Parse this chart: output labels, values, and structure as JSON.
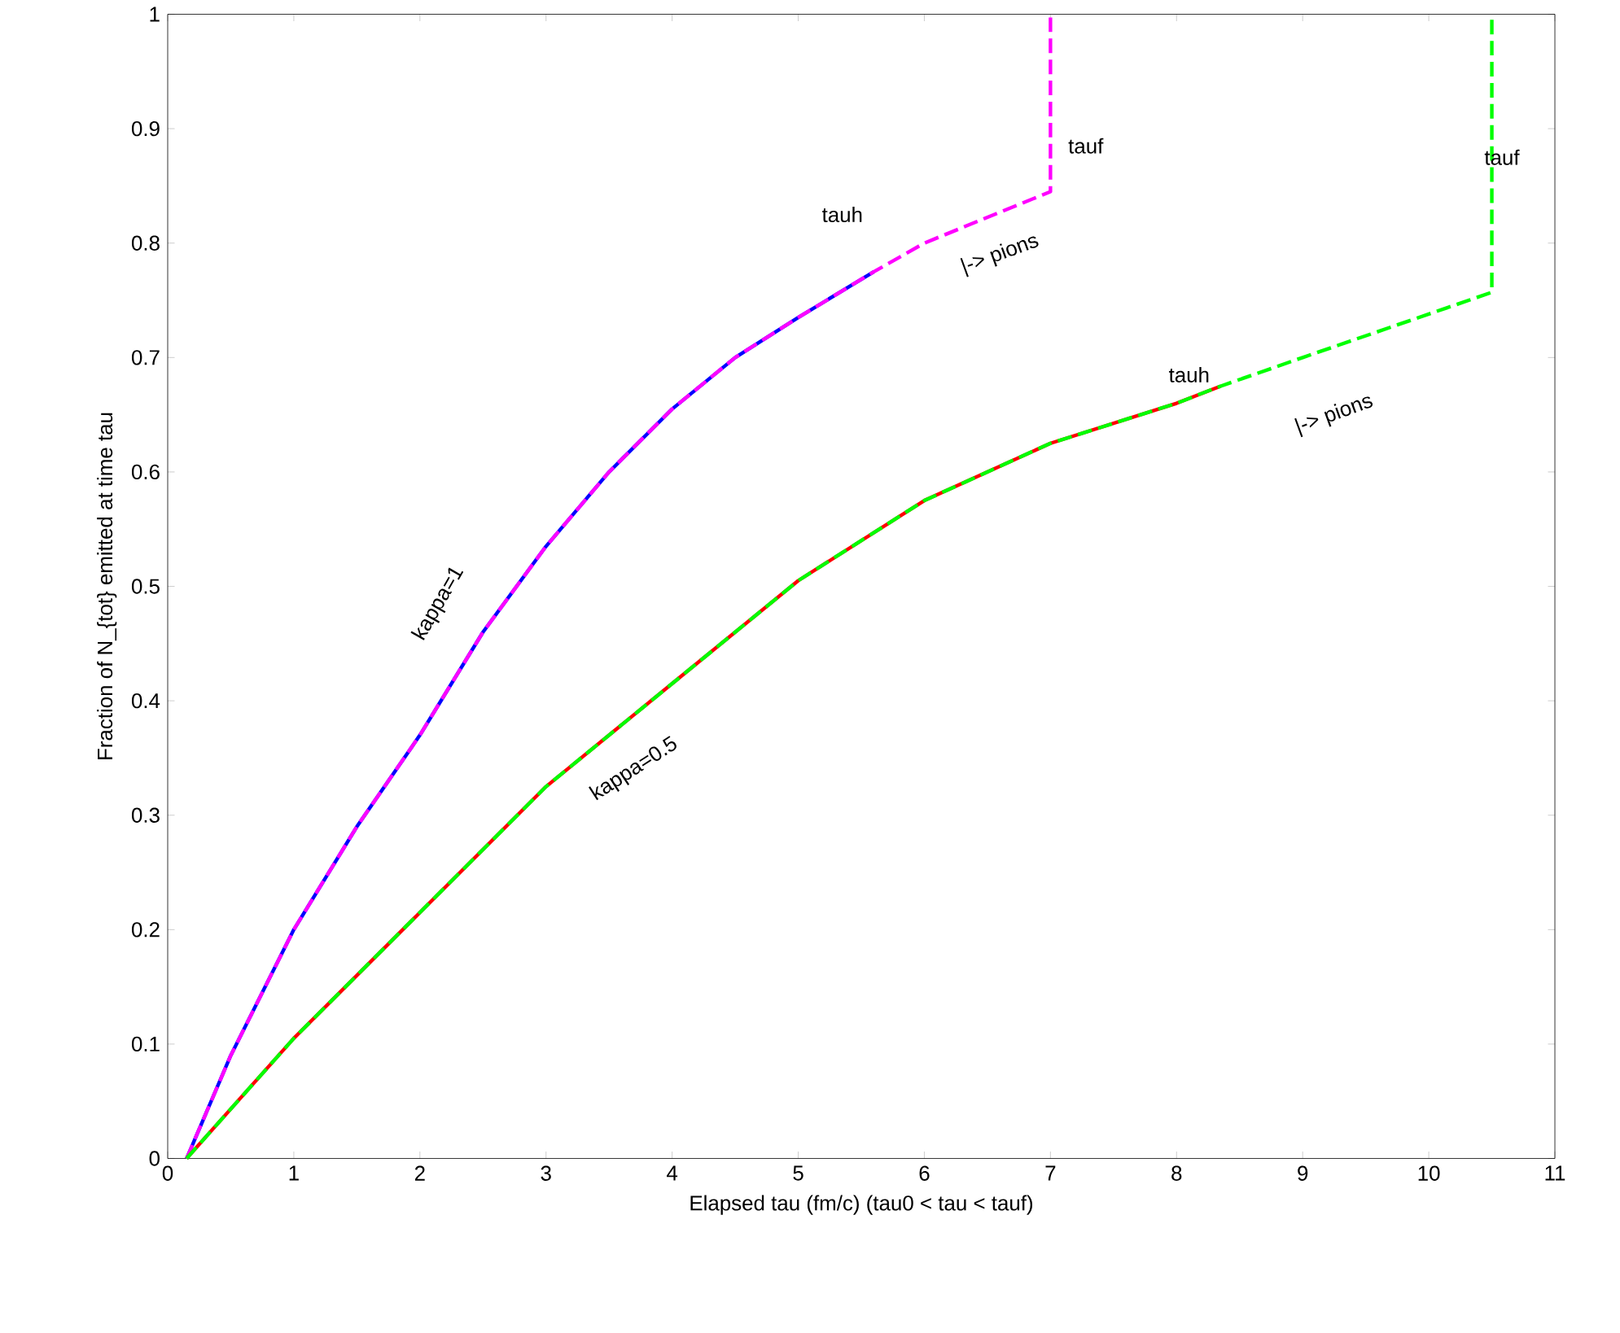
{
  "chart_data": {
    "type": "line",
    "xlabel": "Elapsed  tau (fm/c)  (tau0 < tau < tauf)",
    "ylabel": "Fraction of N_{tot} emitted at time tau",
    "xlim": [
      0,
      11
    ],
    "ylim": [
      0,
      1
    ],
    "xticks": [
      0,
      1,
      2,
      3,
      4,
      5,
      6,
      7,
      8,
      9,
      10,
      11
    ],
    "yticks": [
      0,
      0.1,
      0.2,
      0.3,
      0.4,
      0.5,
      0.6,
      0.7,
      0.8,
      0.9,
      1
    ],
    "grid": false,
    "series": [
      {
        "color": "#0000ff",
        "line_style": "solid",
        "x": [
          0.15,
          0.5,
          1,
          1.5,
          2,
          2.5,
          3,
          3.5,
          4,
          4.5,
          5,
          5.6
        ],
        "values": [
          0,
          0.09,
          0.2,
          0.29,
          0.37,
          0.46,
          0.535,
          0.6,
          0.655,
          0.7,
          0.735,
          0.775
        ]
      },
      {
        "color": "#ff00ff",
        "line_style": "dashed",
        "x": [
          0.15,
          0.5,
          1,
          1.5,
          2,
          2.5,
          3,
          3.5,
          4,
          4.5,
          5,
          5.6,
          6,
          7,
          7,
          7
        ],
        "values": [
          0,
          0.09,
          0.2,
          0.29,
          0.37,
          0.46,
          0.535,
          0.6,
          0.655,
          0.7,
          0.735,
          0.775,
          0.8,
          0.845,
          0.845,
          1
        ]
      },
      {
        "color": "#ff0000",
        "line_style": "solid",
        "x": [
          0.15,
          1,
          2,
          3,
          4,
          5,
          6,
          7,
          8,
          8.35
        ],
        "values": [
          0,
          0.105,
          0.215,
          0.325,
          0.415,
          0.505,
          0.575,
          0.625,
          0.66,
          0.675
        ]
      },
      {
        "color": "#00ff00",
        "line_style": "dashed",
        "x": [
          0.15,
          1,
          2,
          3,
          4,
          5,
          6,
          7,
          8,
          8.35,
          9,
          10.5,
          10.5
        ],
        "values": [
          0,
          0.105,
          0.215,
          0.325,
          0.415,
          0.505,
          0.575,
          0.625,
          0.66,
          0.675,
          0.7,
          0.757,
          1
        ]
      }
    ],
    "annotations": [
      "tauf",
      "tauf",
      "tauh",
      "tauh",
      "|-> pions",
      "|-> pions",
      "kappa=1",
      "kappa=0.5"
    ]
  }
}
